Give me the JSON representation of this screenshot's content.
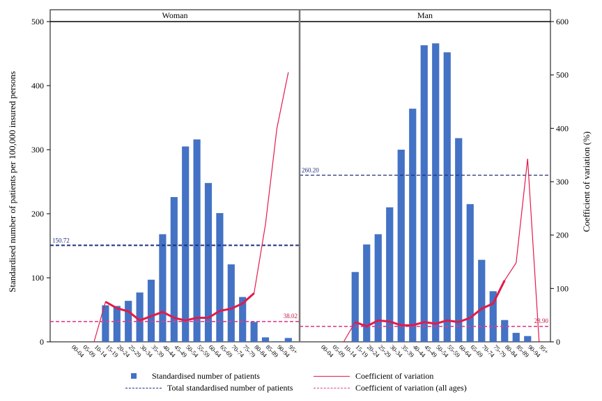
{
  "chart_data": {
    "type": "bar",
    "ylabel": "Standardised number of patients per 100,000 insured persons",
    "y2label": "Coefficient of variation (%)",
    "ylim": [
      0,
      500
    ],
    "y2lim": [
      0,
      600
    ],
    "yticks": [
      "0",
      "100",
      "200",
      "300",
      "400",
      "500"
    ],
    "y2ticks": [
      "0",
      "100",
      "200",
      "300",
      "400",
      "500",
      "600"
    ],
    "categories": [
      "00-04",
      "05-09",
      "10-14",
      "15-19",
      "20-24",
      "25-29",
      "30-34",
      "35-39",
      "40-44",
      "45-49",
      "50-54",
      "55-59",
      "60-64",
      "65-69",
      "70-74",
      "75-79",
      "80-84",
      "85-89",
      "90-94",
      "95+"
    ],
    "panels": [
      {
        "name": "Woman",
        "bars": [
          0,
          0,
          0,
          57,
          56,
          64,
          77,
          97,
          168,
          226,
          305,
          316,
          248,
          201,
          121,
          70,
          31,
          7,
          1,
          6
        ],
        "cv": [
          null,
          null,
          0,
          75,
          63,
          57,
          40,
          48,
          56,
          45,
          40,
          45,
          45,
          58,
          62,
          72,
          91,
          220,
          400,
          505
        ],
        "total_value": 150.72,
        "total_label": "150.72",
        "cv_all_value": 38.02,
        "cv_all_label": "38.02"
      },
      {
        "name": "Man",
        "bars": [
          0,
          0,
          0,
          109,
          152,
          168,
          210,
          300,
          364,
          463,
          466,
          452,
          318,
          215,
          128,
          79,
          34,
          14,
          9,
          0
        ],
        "cv": [
          null,
          null,
          0,
          37,
          29,
          40,
          38,
          31,
          31,
          37,
          34,
          40,
          37,
          45,
          62,
          72,
          115,
          148,
          343,
          0
        ],
        "total_value": 260.2,
        "total_label": "260.20",
        "cv_all_value": 28.9,
        "cv_all_label": "28.90"
      }
    ],
    "colors": {
      "bar": "#4472c4",
      "cv": "#e31a4a",
      "total": "#1f2f7a",
      "cv_all": "#e0408a"
    }
  },
  "legend": {
    "bars": "Standardised number of patients",
    "total": "Total standardised number of patients",
    "cv": "Coefficient of variation",
    "cv_all": "Coefficient of variation (all ages)"
  }
}
